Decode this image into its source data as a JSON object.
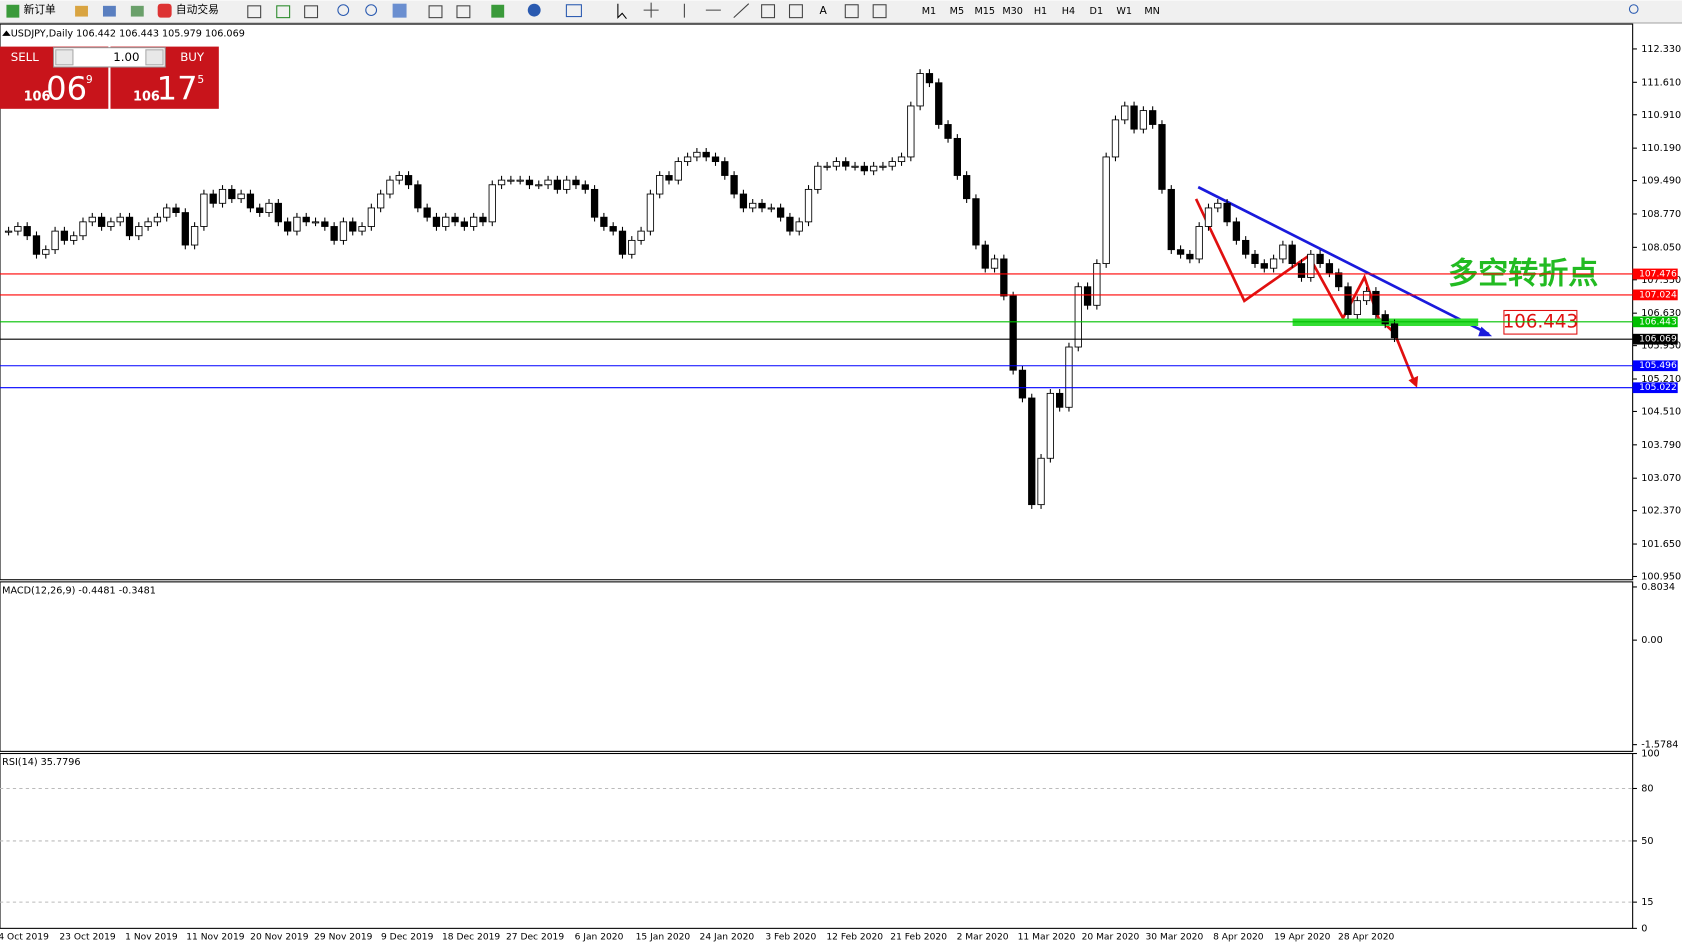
{
  "toolbar": {
    "new_order": "新订单",
    "auto_trading": "自动交易",
    "periods": [
      "M1",
      "M5",
      "M15",
      "M30",
      "H1",
      "H4",
      "D1",
      "W1",
      "MN"
    ]
  },
  "trade_panel": {
    "sell": "SELL",
    "buy": "BUY",
    "lots": "1.00",
    "sell_big": "106",
    "sell_main": "06",
    "sell_sup": "9",
    "buy_big": "106",
    "buy_main": "17",
    "buy_sup": "5"
  },
  "chart": {
    "type": "candlestick",
    "title": "USDJPY,Daily  106.442 106.443 105.979 106.069",
    "ylim": [
      100.88,
      112.82
    ],
    "yticks": [
      {
        "value": 112.33,
        "label": "112.330"
      },
      {
        "value": 111.61,
        "label": "111.610"
      },
      {
        "value": 110.91,
        "label": "110.910"
      },
      {
        "value": 110.19,
        "label": "110.190"
      },
      {
        "value": 109.49,
        "label": "109.490"
      },
      {
        "value": 108.77,
        "label": "108.770"
      },
      {
        "value": 108.05,
        "label": "108.050"
      },
      {
        "value": 107.35,
        "label": "107.350"
      },
      {
        "value": 106.63,
        "label": "106.630"
      },
      {
        "value": 105.93,
        "label": "105.930"
      },
      {
        "value": 105.21,
        "label": "105.210"
      },
      {
        "value": 104.51,
        "label": "104.510"
      },
      {
        "value": 103.79,
        "label": "103.790"
      },
      {
        "value": 103.07,
        "label": "103.070"
      },
      {
        "value": 102.37,
        "label": "102.370"
      },
      {
        "value": 101.65,
        "label": "101.650"
      },
      {
        "value": 100.95,
        "label": "100.950"
      }
    ],
    "date_labels": [
      "4 Oct 2019",
      "23 Oct 2019",
      "1 Nov 2019",
      "11 Nov 2019",
      "20 Nov 2019",
      "29 Nov 2019",
      "9 Dec 2019",
      "18 Dec 2019",
      "27 Dec 2019",
      "6 Jan 2020",
      "15 Jan 2020",
      "24 Jan 2020",
      "3 Feb 2020",
      "12 Feb 2020",
      "21 Feb 2020",
      "2 Mar 2020",
      "11 Mar 2020",
      "20 Mar 2020",
      "30 Mar 2020",
      "8 Apr 2020",
      "19 Apr 2020",
      "28 Apr 2020"
    ],
    "closes": [
      108.4,
      108.5,
      108.3,
      107.9,
      108.0,
      108.4,
      108.2,
      108.3,
      108.6,
      108.7,
      108.5,
      108.6,
      108.7,
      108.3,
      108.5,
      108.6,
      108.7,
      108.9,
      108.8,
      108.1,
      108.5,
      109.2,
      109.0,
      109.3,
      109.1,
      109.2,
      108.9,
      108.8,
      109.0,
      108.6,
      108.4,
      108.7,
      108.6,
      108.6,
      108.5,
      108.2,
      108.6,
      108.4,
      108.5,
      108.9,
      109.2,
      109.5,
      109.6,
      109.4,
      108.9,
      108.7,
      108.5,
      108.7,
      108.6,
      108.5,
      108.7,
      108.6,
      109.4,
      109.5,
      109.5,
      109.5,
      109.4,
      109.4,
      109.5,
      109.3,
      109.5,
      109.4,
      109.3,
      108.7,
      108.5,
      108.4,
      107.9,
      108.2,
      108.4,
      109.2,
      109.6,
      109.5,
      109.9,
      110.0,
      110.1,
      110.0,
      109.9,
      109.6,
      109.2,
      108.9,
      109.0,
      108.9,
      108.9,
      108.7,
      108.4,
      108.6,
      109.3,
      109.8,
      109.8,
      109.9,
      109.8,
      109.8,
      109.7,
      109.8,
      109.8,
      109.9,
      110.0,
      111.1,
      111.8,
      111.6,
      110.7,
      110.4,
      109.6,
      109.1,
      108.1,
      107.6,
      107.8,
      107.0,
      105.4,
      104.8,
      102.5,
      103.5,
      104.9,
      104.6,
      105.9,
      107.2,
      106.8,
      107.7,
      110.0,
      110.8,
      111.1,
      110.6,
      111.0,
      110.7,
      109.3,
      108.0,
      107.9,
      107.8,
      108.5,
      108.9,
      109.0,
      108.6,
      108.2,
      107.9,
      107.7,
      107.6,
      107.8,
      108.1,
      107.7,
      107.4,
      107.9,
      107.7,
      107.5,
      107.2,
      106.6,
      106.9,
      107.1,
      106.6,
      106.4,
      106.1
    ],
    "levels": [
      {
        "value": 107.476,
        "color": "#ff0000"
      },
      {
        "value": 107.024,
        "color": "#ff0000"
      },
      {
        "value": 106.443,
        "color": "#00c000"
      },
      {
        "value": 106.069,
        "color": "#000000"
      },
      {
        "value": 105.496,
        "color": "#0000ff"
      },
      {
        "value": 105.022,
        "color": "#0000ff"
      }
    ],
    "annotation": "多空转折点"
  },
  "macd": {
    "label": "MACD(12,26,9) -0.4481 -0.3481",
    "ylim": [
      -1.68,
      0.88
    ],
    "yticks": [
      0.8034,
      {
        "value": 0,
        "label": "0.00"
      },
      -1.5784
    ]
  },
  "rsi": {
    "label": "RSI(14) 35.7796",
    "ylim": [
      0,
      100
    ],
    "yticks": [
      100,
      80,
      50,
      15,
      0
    ]
  }
}
